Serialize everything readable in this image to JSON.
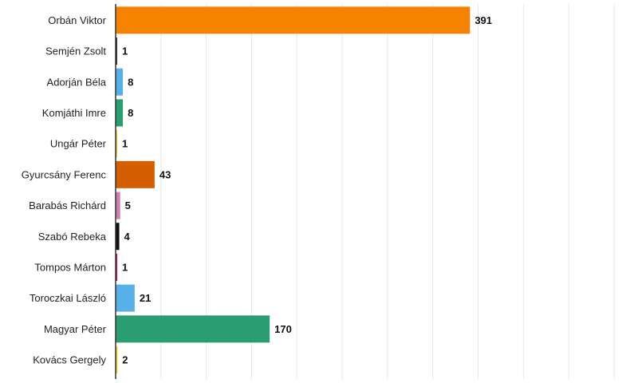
{
  "chart_data": {
    "type": "bar",
    "orientation": "horizontal",
    "title": "",
    "xlabel": "",
    "ylabel": "",
    "xlim": [
      0,
      550
    ],
    "grid": true,
    "legend": "none",
    "categories": [
      "Orbán Viktor",
      "Semjén Zsolt",
      "Adorján Béla",
      "Komjáthi Imre",
      "Ungár Péter",
      "Gyurcsány Ferenc",
      "Barabás Richárd",
      "Szabó Rebeka",
      "Tompos Márton",
      "Toroczkai László",
      "Magyar Péter",
      "Kovács Gergely"
    ],
    "values": [
      391,
      1,
      8,
      8,
      1,
      43,
      5,
      4,
      1,
      21,
      170,
      2
    ],
    "colors": [
      "#f58300",
      "#333333",
      "#57b0e8",
      "#2a9d72",
      "#f2d21b",
      "#d35f00",
      "#cf7fb3",
      "#111111",
      "#e4005b",
      "#57b0e8",
      "#2a9d72",
      "#f2d21b"
    ]
  }
}
